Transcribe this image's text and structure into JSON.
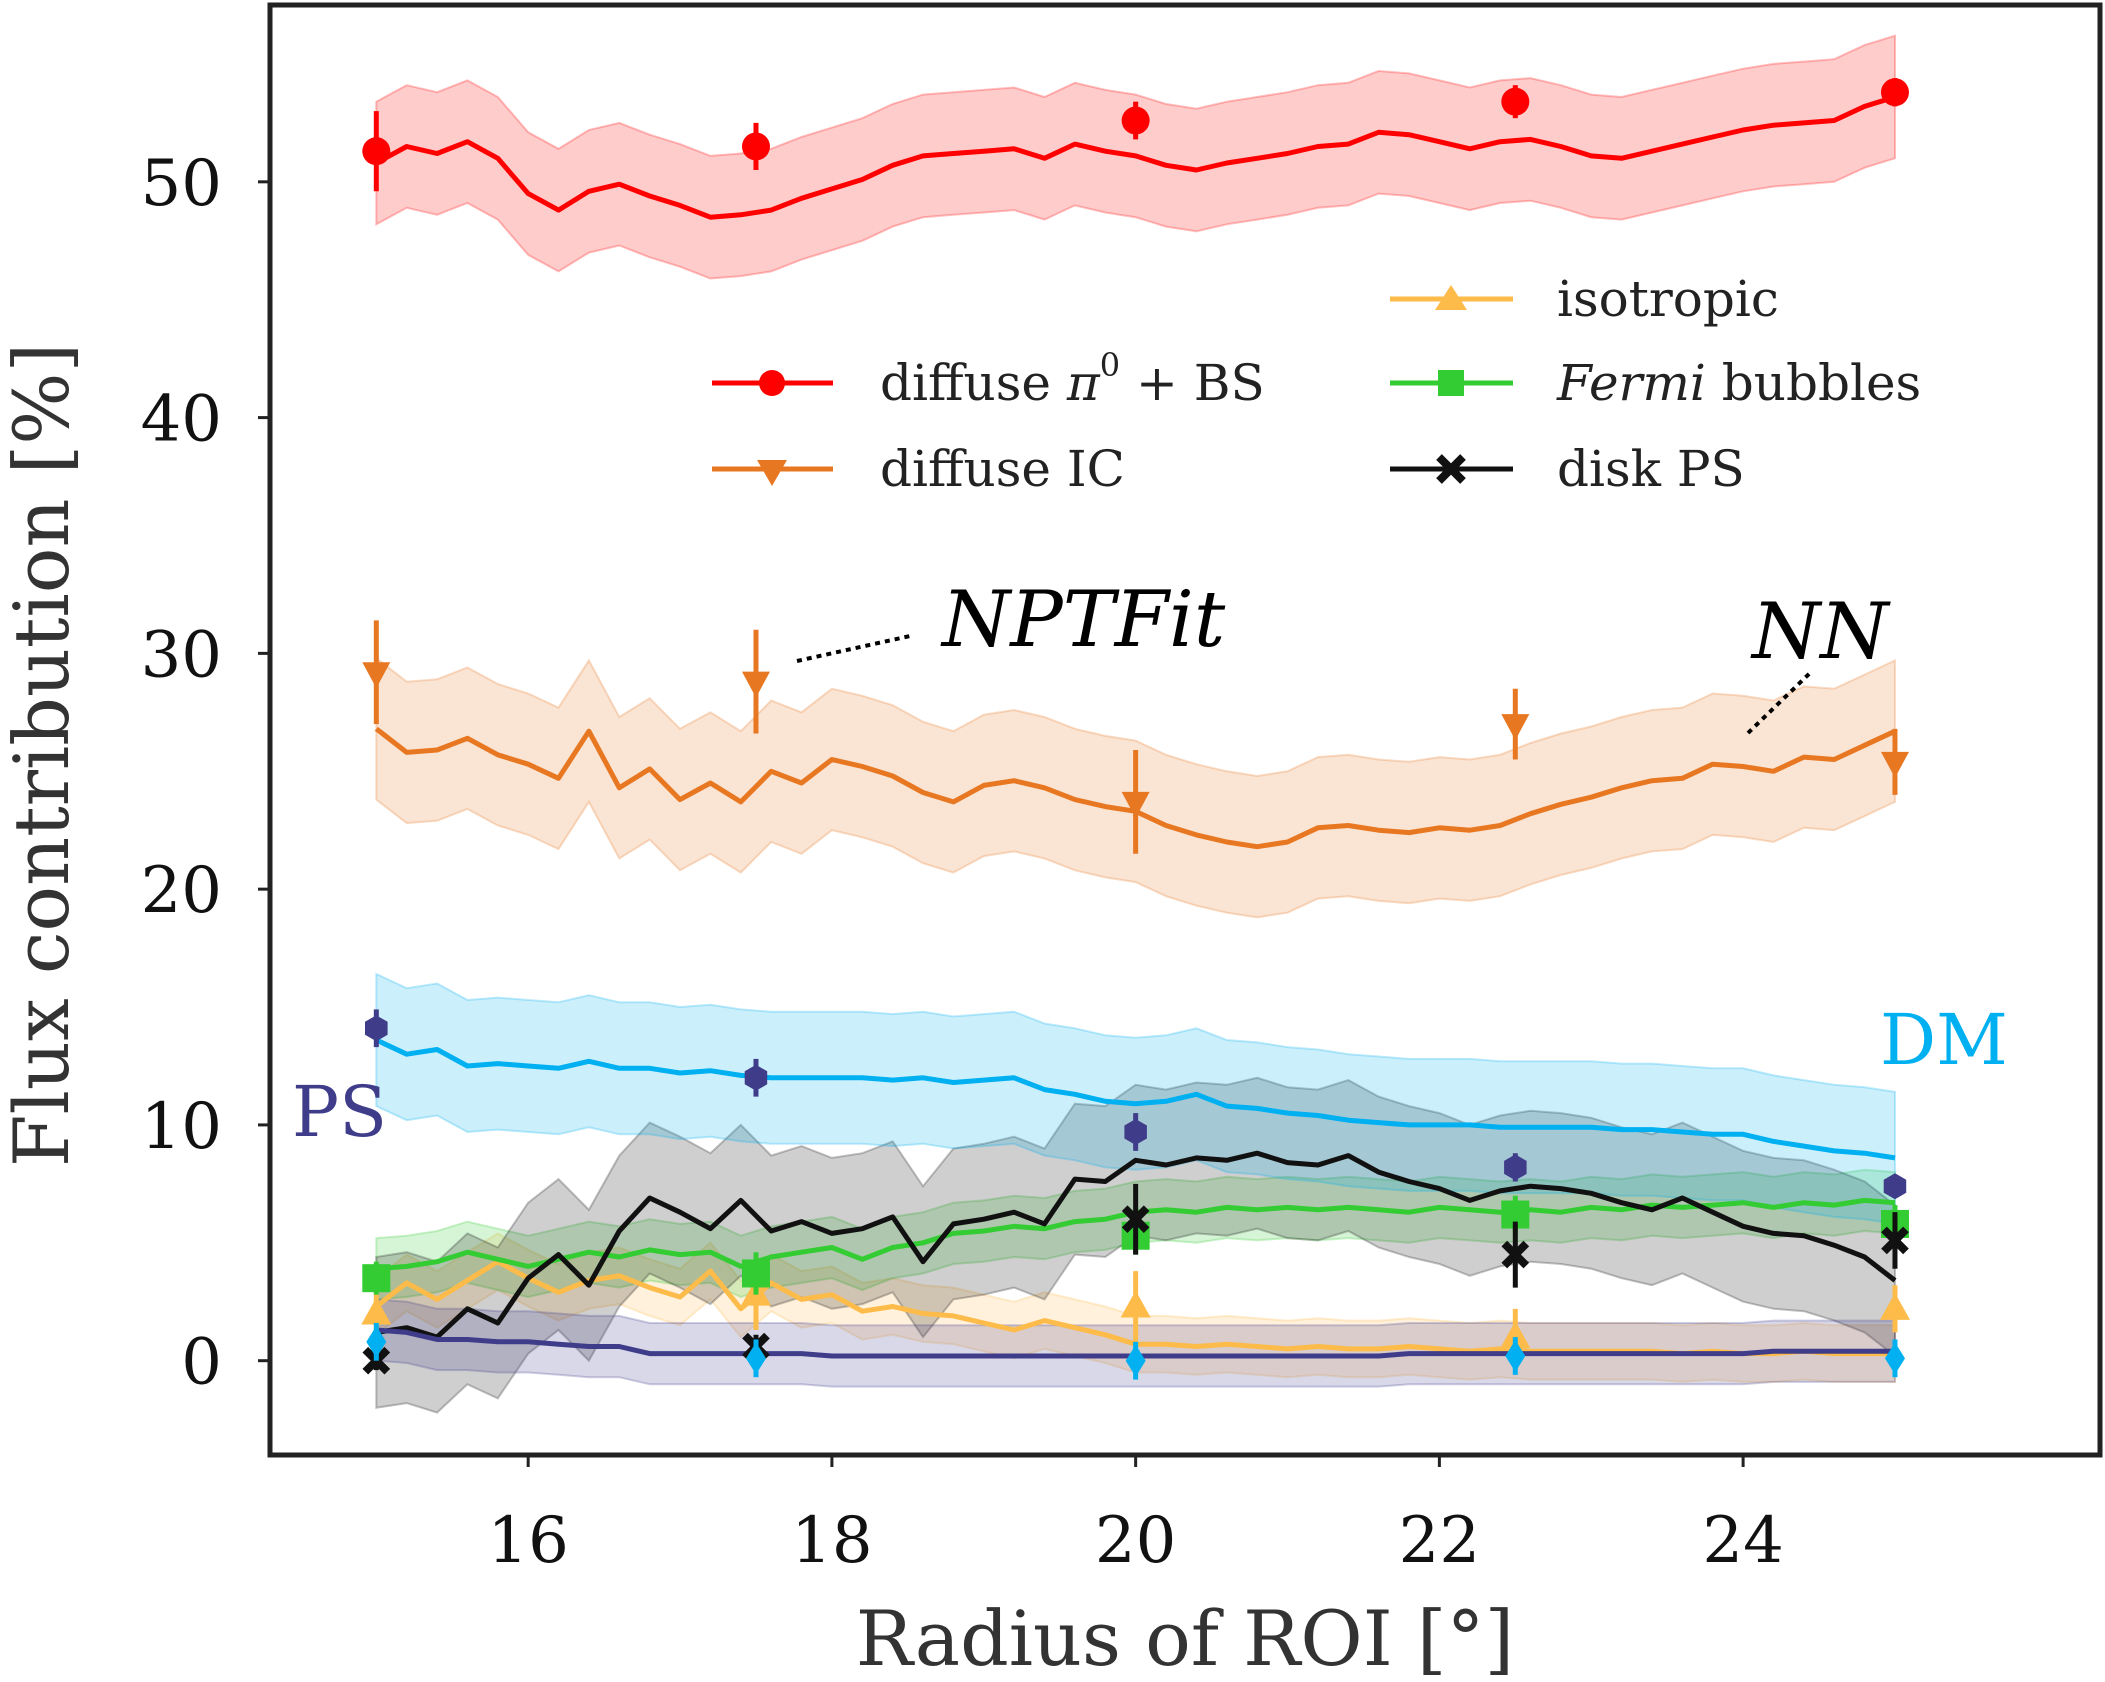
{
  "chart_data": {
    "type": "line",
    "xlabel": "Radius of ROI [°]",
    "ylabel": "Flux contribution [%]",
    "xlim": [
      14.3,
      26.35
    ],
    "ylim": [
      -4,
      57.5
    ],
    "xticks": [
      "16",
      "18",
      "20",
      "22",
      "24"
    ],
    "yticks": [
      "0",
      "10",
      "20",
      "30",
      "40",
      "50"
    ],
    "grid": false,
    "legend_placement": "upper-right",
    "nn_x": [
      15,
      15.2,
      15.4,
      15.6,
      15.8,
      16,
      16.2,
      16.4,
      16.6,
      16.8,
      17,
      17.2,
      17.4,
      17.6,
      17.8,
      18,
      18.2,
      18.4,
      18.6,
      18.8,
      19,
      19.2,
      19.4,
      19.6,
      19.8,
      20,
      20.2,
      20.4,
      20.6,
      20.8,
      21,
      21.2,
      21.4,
      21.6,
      21.8,
      22,
      22.2,
      22.4,
      22.6,
      22.8,
      23,
      23.2,
      23.4,
      23.6,
      23.8,
      24,
      24.2,
      24.4,
      24.6,
      24.8,
      25
    ],
    "npt_x": [
      15,
      17.5,
      20,
      22.5,
      25
    ],
    "series": [
      {
        "legend": "diffuse π⁰ + BS",
        "label_main": "diffuse ",
        "label_italic": "π",
        "label_sup": "0",
        "label_tail": " + BS",
        "color": "#ff0000",
        "marker": "circle",
        "nn": [
          50.8,
          51.5,
          51.2,
          51.7,
          51.0,
          49.5,
          48.8,
          49.6,
          49.9,
          49.4,
          49.0,
          48.5,
          48.6,
          48.8,
          49.3,
          49.7,
          50.1,
          50.7,
          51.1,
          51.2,
          51.3,
          51.4,
          51.0,
          51.6,
          51.3,
          51.1,
          50.7,
          50.5,
          50.8,
          51.0,
          51.2,
          51.5,
          51.6,
          52.1,
          52.0,
          51.7,
          51.4,
          51.7,
          51.8,
          51.5,
          51.1,
          51.0,
          51.3,
          51.6,
          51.9,
          52.2,
          52.4,
          52.5,
          52.6,
          53.2,
          53.6
        ],
        "band": 2.6,
        "npt": [
          51.3,
          51.5,
          52.6,
          53.4,
          53.8
        ],
        "npt_err": [
          1.7,
          1.0,
          0.8,
          0.7,
          0.6
        ]
      },
      {
        "legend": "diffuse IC",
        "color": "#e87722",
        "marker": "triangle-down",
        "nn": [
          26.8,
          25.8,
          25.9,
          26.4,
          25.7,
          25.3,
          24.7,
          26.7,
          24.3,
          25.1,
          23.8,
          24.5,
          23.7,
          25.0,
          24.5,
          25.5,
          25.2,
          24.8,
          24.1,
          23.7,
          24.4,
          24.6,
          24.3,
          23.8,
          23.5,
          23.3,
          22.7,
          22.3,
          22.0,
          21.8,
          22.0,
          22.6,
          22.7,
          22.5,
          22.4,
          22.6,
          22.5,
          22.7,
          23.2,
          23.6,
          23.9,
          24.3,
          24.6,
          24.7,
          25.3,
          25.2,
          25.0,
          25.6,
          25.5,
          26.1,
          26.7
        ],
        "band": 3.0,
        "npt": [
          29.2,
          28.8,
          23.7,
          27.0,
          25.4
        ],
        "npt_err": [
          2.2,
          2.2,
          2.2,
          1.5,
          1.4
        ]
      },
      {
        "legend": "isotropic",
        "color": "#fdbb4a",
        "marker": "triangle-up",
        "nn": [
          2.3,
          3.3,
          2.6,
          3.4,
          4.2,
          3.5,
          2.9,
          3.4,
          3.6,
          3.1,
          2.7,
          3.8,
          2.2,
          3.3,
          2.6,
          2.8,
          2.1,
          2.3,
          2.0,
          1.9,
          1.6,
          1.3,
          1.7,
          1.4,
          1.1,
          0.7,
          0.7,
          0.6,
          0.7,
          0.6,
          0.5,
          0.6,
          0.5,
          0.5,
          0.6,
          0.5,
          0.4,
          0.5,
          0.4,
          0.4,
          0.4,
          0.4,
          0.4,
          0.3,
          0.4,
          0.3,
          0.3,
          0.4,
          0.3,
          0.3,
          0.3
        ],
        "band": 1.2,
        "npt": [
          2.0,
          2.8,
          2.3,
          1.0,
          2.2
        ],
        "npt_err": [
          1.2,
          1.5,
          1.5,
          1.2,
          1.0
        ]
      },
      {
        "legend": "Fermi bubbles",
        "label_italic": "Fermi",
        "label_tail": " bubbles",
        "color": "#33cc33",
        "marker": "square",
        "nn": [
          3.9,
          4.0,
          4.2,
          4.6,
          4.3,
          4.0,
          4.3,
          4.6,
          4.4,
          4.7,
          4.5,
          4.6,
          4.0,
          4.4,
          4.6,
          4.8,
          4.3,
          4.8,
          5.0,
          5.4,
          5.5,
          5.7,
          5.6,
          5.9,
          6.0,
          6.3,
          6.4,
          6.3,
          6.5,
          6.4,
          6.5,
          6.4,
          6.5,
          6.4,
          6.3,
          6.5,
          6.4,
          6.3,
          6.4,
          6.3,
          6.5,
          6.4,
          6.6,
          6.5,
          6.6,
          6.7,
          6.5,
          6.7,
          6.6,
          6.8,
          6.7
        ],
        "band": 1.3,
        "npt": [
          3.5,
          3.7,
          5.3,
          6.2,
          5.8
        ],
        "npt_err": [
          0.7,
          0.9,
          0.8,
          0.8,
          0.8
        ]
      },
      {
        "legend": "disk PS",
        "color": "#111111",
        "marker": "x",
        "nn": [
          1.2,
          1.4,
          1.0,
          2.2,
          1.6,
          3.5,
          4.5,
          3.2,
          5.5,
          6.9,
          6.3,
          5.6,
          6.8,
          5.5,
          5.9,
          5.4,
          5.6,
          6.1,
          4.2,
          5.8,
          6.0,
          6.3,
          5.8,
          7.7,
          7.6,
          8.5,
          8.3,
          8.6,
          8.5,
          8.8,
          8.4,
          8.3,
          8.7,
          8.0,
          7.6,
          7.3,
          6.8,
          7.2,
          7.4,
          7.3,
          7.1,
          6.7,
          6.4,
          6.9,
          6.3,
          5.7,
          5.4,
          5.3,
          4.9,
          4.4,
          3.4
        ],
        "band": 3.2,
        "npt": [
          0.0,
          0.6,
          6.0,
          4.5,
          5.1
        ],
        "npt_err": [
          0.4,
          0.5,
          1.5,
          1.4,
          1.2
        ]
      },
      {
        "legend": "DM",
        "color": "#00b0f0",
        "marker": "diamond",
        "nn": [
          13.6,
          13.0,
          13.2,
          12.5,
          12.6,
          12.5,
          12.4,
          12.7,
          12.4,
          12.4,
          12.2,
          12.3,
          12.1,
          12.0,
          12.0,
          12.0,
          12.0,
          11.9,
          12.0,
          11.8,
          11.9,
          12.0,
          11.5,
          11.3,
          11.0,
          10.9,
          11.0,
          11.3,
          10.8,
          10.7,
          10.5,
          10.4,
          10.2,
          10.1,
          10.0,
          10.0,
          10.0,
          9.9,
          9.9,
          9.9,
          9.9,
          9.8,
          9.8,
          9.7,
          9.6,
          9.6,
          9.3,
          9.1,
          8.9,
          8.8,
          8.6
        ],
        "band": 2.8,
        "npt": [
          0.8,
          0.1,
          0.0,
          0.2,
          0.1
        ],
        "npt_err": [
          0.8,
          0.8,
          0.8,
          0.8,
          0.8
        ]
      },
      {
        "legend": "PS",
        "color": "#3f3c8a",
        "marker": "hexagon",
        "nn": [
          1.3,
          1.2,
          0.9,
          0.9,
          0.8,
          0.8,
          0.7,
          0.6,
          0.6,
          0.3,
          0.3,
          0.3,
          0.3,
          0.3,
          0.3,
          0.2,
          0.2,
          0.2,
          0.2,
          0.2,
          0.2,
          0.2,
          0.2,
          0.2,
          0.2,
          0.2,
          0.2,
          0.2,
          0.2,
          0.2,
          0.2,
          0.2,
          0.2,
          0.2,
          0.3,
          0.3,
          0.3,
          0.3,
          0.3,
          0.3,
          0.3,
          0.3,
          0.3,
          0.3,
          0.3,
          0.3,
          0.4,
          0.4,
          0.4,
          0.4,
          0.4
        ],
        "band": 1.3,
        "npt": [
          14.1,
          12.0,
          9.7,
          8.2,
          7.4
        ],
        "npt_err": [
          0.8,
          0.8,
          0.8,
          0.6,
          0.5
        ]
      }
    ],
    "annotations": {
      "nptfit": "NPTFit",
      "nn": "NN",
      "dm": "DM",
      "ps": "PS"
    }
  }
}
